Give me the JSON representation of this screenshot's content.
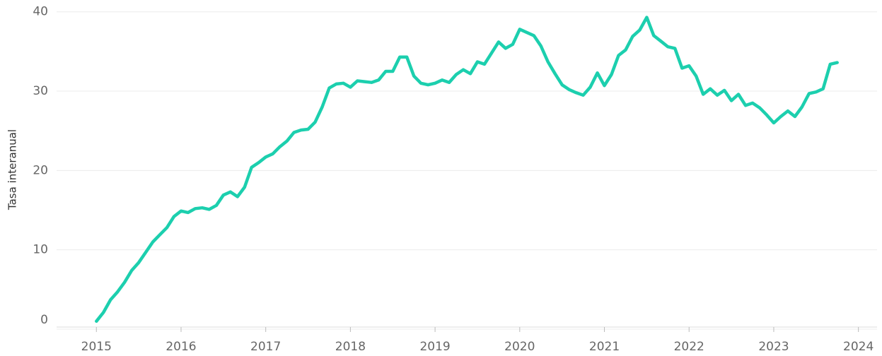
{
  "chart_data": {
    "type": "line",
    "y_label": "Tasa interanual",
    "x": [
      2015,
      2015.083,
      2015.167,
      2015.25,
      2015.333,
      2015.417,
      2015.5,
      2015.583,
      2015.667,
      2015.75,
      2015.833,
      2015.917,
      2016,
      2016.083,
      2016.167,
      2016.25,
      2016.333,
      2016.417,
      2016.5,
      2016.583,
      2016.667,
      2016.75,
      2016.833,
      2016.917,
      2017,
      2017.083,
      2017.167,
      2017.25,
      2017.333,
      2017.417,
      2017.5,
      2017.583,
      2017.667,
      2017.75,
      2017.833,
      2017.917,
      2018,
      2018.083,
      2018.167,
      2018.25,
      2018.333,
      2018.417,
      2018.5,
      2018.583,
      2018.667,
      2018.75,
      2018.833,
      2018.917,
      2019,
      2019.083,
      2019.167,
      2019.25,
      2019.333,
      2019.417,
      2019.5,
      2019.583,
      2019.667,
      2019.75,
      2019.833,
      2019.917,
      2020,
      2020.083,
      2020.167,
      2020.25,
      2020.333,
      2020.417,
      2020.5,
      2020.583,
      2020.667,
      2020.75,
      2020.833,
      2020.917,
      2021,
      2021.083,
      2021.167,
      2021.25,
      2021.333,
      2021.417,
      2021.5,
      2021.583,
      2021.667,
      2021.75,
      2021.833,
      2021.917,
      2022,
      2022.083,
      2022.167,
      2022.25,
      2022.333,
      2022.417,
      2022.5,
      2022.583,
      2022.667,
      2022.75,
      2022.833,
      2022.917,
      2023,
      2023.083,
      2023.167,
      2023.25,
      2023.333,
      2023.417,
      2023.5,
      2023.583,
      2023.667,
      2023.75
    ],
    "series": [
      {
        "color": "#1ccfae",
        "values": [
          1.0,
          2.1,
          3.7,
          4.7,
          5.9,
          7.4,
          8.4,
          9.7,
          11.0,
          11.9,
          12.8,
          14.2,
          14.9,
          14.7,
          15.2,
          15.3,
          15.1,
          15.6,
          16.9,
          17.3,
          16.7,
          17.9,
          20.4,
          21.0,
          21.7,
          22.1,
          23.0,
          23.7,
          24.8,
          25.1,
          25.2,
          26.1,
          28.0,
          30.4,
          30.9,
          31.0,
          30.5,
          31.3,
          31.2,
          31.1,
          31.4,
          32.5,
          32.5,
          34.3,
          34.3,
          31.9,
          31.0,
          30.8,
          31.0,
          31.4,
          31.1,
          32.1,
          32.7,
          32.2,
          33.7,
          33.4,
          34.8,
          36.2,
          35.4,
          35.9,
          37.8,
          37.4,
          37.0,
          35.7,
          33.7,
          32.2,
          30.8,
          30.2,
          29.8,
          29.5,
          30.5,
          32.3,
          30.7,
          32.1,
          34.5,
          35.2,
          36.9,
          37.7,
          39.3,
          37.0,
          36.3,
          35.6,
          35.4,
          32.9,
          33.2,
          31.9,
          29.6,
          30.3,
          29.5,
          30.1,
          28.8,
          29.6,
          28.2,
          28.5,
          27.9,
          27.0,
          26.0,
          26.8,
          27.5,
          26.8,
          28.0,
          29.7,
          29.9,
          30.3,
          33.4,
          33.6
        ]
      }
    ],
    "xlim": [
      2014.53,
      2024.22
    ],
    "xticks": [
      2015,
      2016,
      2017,
      2018,
      2019,
      2020,
      2021,
      2022,
      2023,
      2024
    ],
    "ylim": [
      0,
      40.6
    ],
    "yticks": [
      0,
      10,
      20,
      30,
      40
    ],
    "grid": true
  }
}
